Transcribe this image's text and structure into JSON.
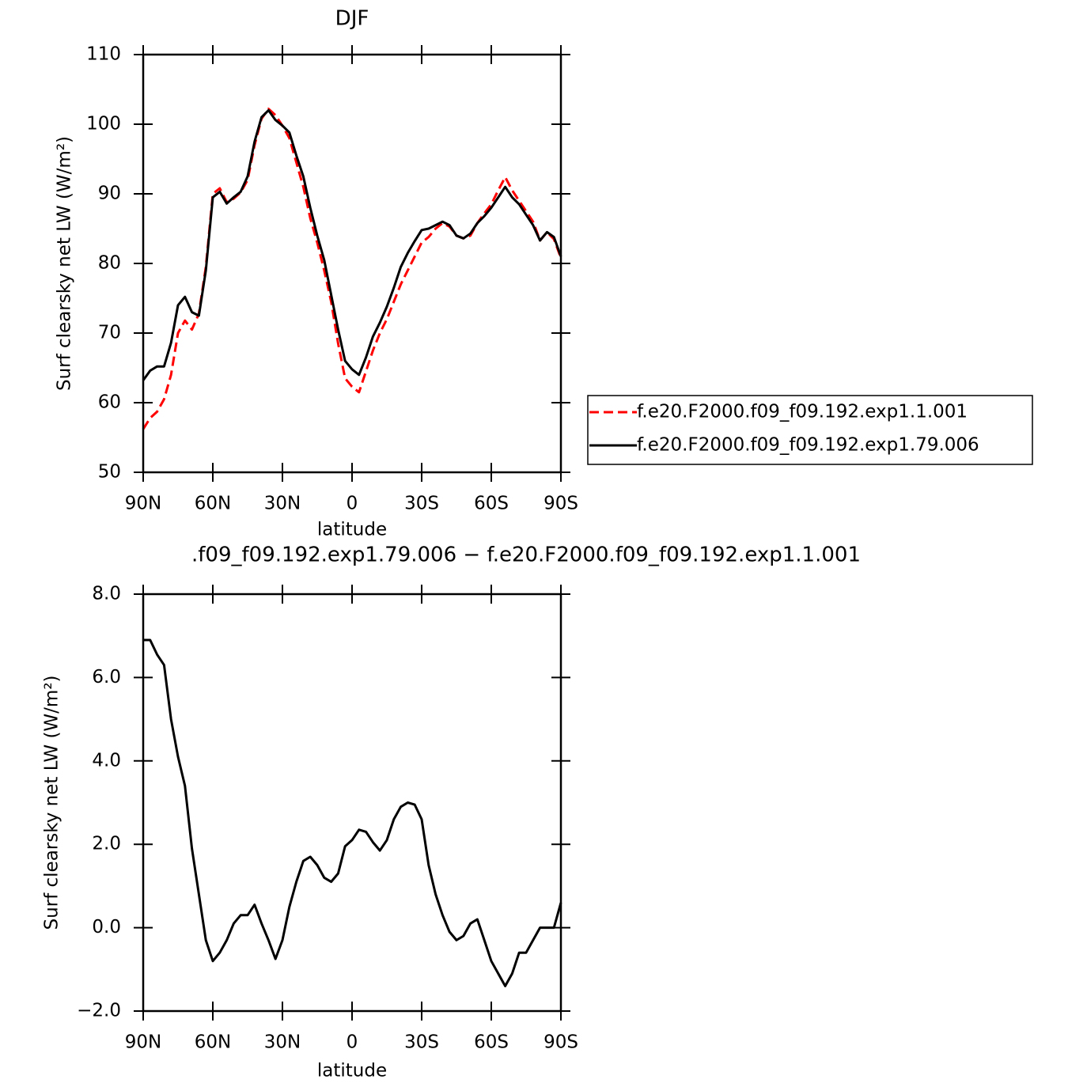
{
  "chart_data": [
    {
      "type": "line",
      "title": "DJF",
      "xlabel": "latitude",
      "ylabel": "Surf clearsky net LW (W/m²)",
      "xlim": [
        90,
        -90
      ],
      "ylim": [
        50,
        110
      ],
      "xticks": [
        {
          "value": 90,
          "label": "90N"
        },
        {
          "value": 60,
          "label": "60N"
        },
        {
          "value": 30,
          "label": "30N"
        },
        0,
        {
          "value": -30,
          "label": "30S"
        },
        {
          "value": -60,
          "label": "60S"
        },
        {
          "value": -90,
          "label": "90S"
        }
      ],
      "yticks": [
        50,
        60,
        70,
        80,
        90,
        100,
        110
      ],
      "legend": "right",
      "x": [
        90,
        87,
        84,
        81,
        78,
        75,
        72,
        69,
        66,
        63,
        60,
        57,
        54,
        51,
        48,
        45,
        42,
        39,
        36,
        33,
        30,
        27,
        24,
        21,
        18,
        15,
        12,
        9,
        6,
        3,
        0,
        -3,
        -6,
        -9,
        -12,
        -15,
        -18,
        -21,
        -24,
        -27,
        -30,
        -33,
        -36,
        -39,
        -42,
        -45,
        -48,
        -51,
        -54,
        -57,
        -60,
        -63,
        -66,
        -69,
        -72,
        -75,
        -78,
        -81,
        -84,
        -87,
        -90
      ],
      "series": [
        {
          "name": "f.e20.F2000.f09_f09.192.exp1.1.001",
          "color": "#ff0000",
          "line_style": "dashed",
          "values": [
            56.2,
            57.8,
            58.7,
            60.5,
            64.0,
            70.0,
            71.8,
            70.5,
            72.8,
            79.5,
            90.0,
            90.8,
            88.8,
            89.3,
            90.2,
            92.0,
            97.0,
            100.8,
            102.2,
            101.3,
            99.8,
            98.0,
            94.5,
            91.0,
            86.5,
            83.0,
            79.0,
            74.5,
            68.5,
            63.5,
            62.3,
            61.5,
            64.5,
            67.5,
            70.0,
            72.0,
            74.5,
            77.0,
            79.0,
            81.0,
            83.0,
            83.8,
            85.0,
            85.8,
            85.3,
            84.0,
            83.6,
            84.0,
            85.8,
            87.2,
            88.5,
            90.5,
            92.4,
            90.5,
            89.0,
            87.5,
            86.0,
            83.3,
            84.5,
            83.5,
            80.8
          ]
        },
        {
          "name": "f.e20.F2000.f09_f09.192.exp1.79.006",
          "color": "#000000",
          "line_style": "solid",
          "values": [
            63.2,
            64.6,
            65.2,
            65.2,
            68.6,
            74.0,
            75.2,
            73.0,
            72.5,
            79.0,
            89.5,
            90.3,
            88.6,
            89.5,
            90.3,
            92.5,
            97.5,
            101.0,
            102.0,
            100.6,
            99.8,
            98.8,
            95.5,
            92.5,
            88.0,
            84.0,
            80.5,
            75.5,
            70.5,
            66.0,
            64.8,
            64.0,
            66.5,
            69.5,
            71.5,
            73.8,
            76.5,
            79.5,
            81.5,
            83.2,
            84.8,
            85.0,
            85.5,
            86.0,
            85.5,
            84.0,
            83.6,
            84.3,
            85.8,
            86.8,
            88.0,
            89.5,
            91.0,
            89.5,
            88.5,
            87.0,
            85.5,
            83.3,
            84.5,
            83.8,
            81.0
          ]
        }
      ]
    },
    {
      "type": "line",
      "title": ".f09_f09.192.exp1.79.006 − f.e20.F2000.f09_f09.192.exp1.1.001",
      "xlabel": "latitude",
      "ylabel": "Surf clearsky net LW (W/m²)",
      "xlim": [
        90,
        -90
      ],
      "ylim": [
        -2,
        8
      ],
      "xticks": [
        {
          "value": 90,
          "label": "90N"
        },
        {
          "value": 60,
          "label": "60N"
        },
        {
          "value": 30,
          "label": "30N"
        },
        0,
        {
          "value": -30,
          "label": "30S"
        },
        {
          "value": -60,
          "label": "60S"
        },
        {
          "value": -90,
          "label": "90S"
        }
      ],
      "yticks": [
        {
          "value": -2,
          "label": "−2.0"
        },
        {
          "value": 0,
          "label": "0.0"
        },
        {
          "value": 2,
          "label": "2.0"
        },
        {
          "value": 4,
          "label": "4.0"
        },
        {
          "value": 6,
          "label": "6.0"
        },
        {
          "value": 8,
          "label": "8.0"
        }
      ],
      "color": "#000000",
      "x": [
        90,
        87,
        84,
        81,
        78,
        75,
        72,
        69,
        66,
        63,
        60,
        57,
        54,
        51,
        48,
        45,
        42,
        39,
        36,
        33,
        30,
        27,
        24,
        21,
        18,
        15,
        12,
        9,
        6,
        3,
        0,
        -3,
        -6,
        -9,
        -12,
        -15,
        -18,
        -21,
        -24,
        -27,
        -30,
        -33,
        -36,
        -39,
        -42,
        -45,
        -48,
        -51,
        -54,
        -57,
        -60,
        -63,
        -66,
        -69,
        -72,
        -75,
        -78,
        -81,
        -84,
        -87,
        -90
      ],
      "values": [
        6.9,
        6.9,
        6.55,
        6.3,
        5.0,
        4.1,
        3.4,
        1.9,
        0.8,
        -0.3,
        -0.8,
        -0.6,
        -0.3,
        0.1,
        0.3,
        0.3,
        0.55,
        0.1,
        -0.3,
        -0.75,
        -0.3,
        0.5,
        1.1,
        1.6,
        1.7,
        1.5,
        1.2,
        1.1,
        1.3,
        1.95,
        2.1,
        2.35,
        2.3,
        2.05,
        1.85,
        2.1,
        2.6,
        2.9,
        3.0,
        2.95,
        2.6,
        1.5,
        0.8,
        0.3,
        -0.1,
        -0.3,
        -0.2,
        0.1,
        0.2,
        -0.3,
        -0.8,
        -1.1,
        -1.4,
        -1.1,
        -0.6,
        -0.6,
        -0.3,
        0.0,
        0.0,
        0.0,
        0.6
      ]
    }
  ]
}
